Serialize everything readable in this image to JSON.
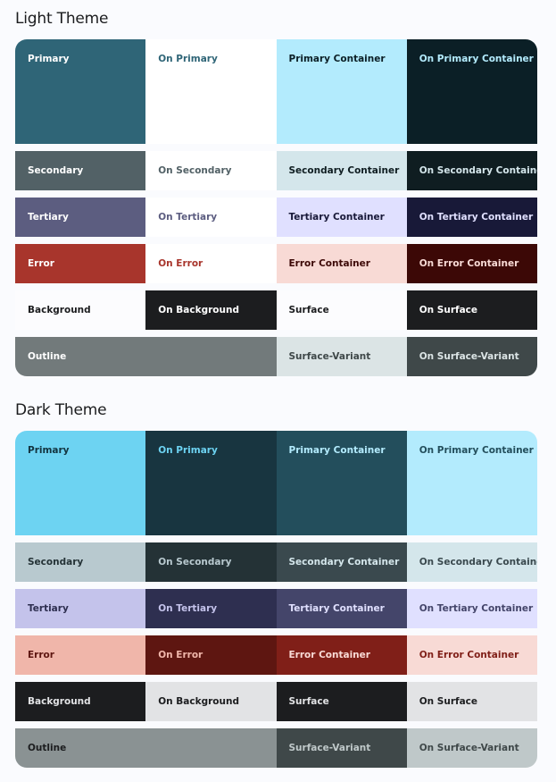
{
  "sections": [
    {
      "title": "Light Theme",
      "rows": [
        {
          "tall": true,
          "cells": [
            {
              "label": "Primary",
              "bg": "#2f6577",
              "fg": "#ffffff"
            },
            {
              "label": "On Primary",
              "bg": "#ffffff",
              "fg": "#2f6577"
            },
            {
              "label": "Primary Container",
              "bg": "#b3ebfd",
              "fg": "#0b1f26"
            },
            {
              "label": "On Primary Container",
              "bg": "#0b1f26",
              "fg": "#b3ebfd"
            }
          ]
        },
        {
          "cells": [
            {
              "label": "Secondary",
              "bg": "#526166",
              "fg": "#ffffff"
            },
            {
              "label": "On Secondary",
              "bg": "#ffffff",
              "fg": "#526166"
            },
            {
              "label": "Secondary Container",
              "bg": "#d4e6eb",
              "fg": "#0f1d21"
            },
            {
              "label": "On Secondary Container",
              "bg": "#0f1d21",
              "fg": "#d4e6eb"
            }
          ]
        },
        {
          "cells": [
            {
              "label": "Tertiary",
              "bg": "#5c5d80",
              "fg": "#ffffff"
            },
            {
              "label": "On Tertiary",
              "bg": "#ffffff",
              "fg": "#5c5d80"
            },
            {
              "label": "Tertiary Container",
              "bg": "#e0e0ff",
              "fg": "#181938"
            },
            {
              "label": "On Tertiary Container",
              "bg": "#181938",
              "fg": "#e0e0ff"
            }
          ]
        },
        {
          "cells": [
            {
              "label": "Error",
              "bg": "#a8352c",
              "fg": "#ffffff"
            },
            {
              "label": "On Error",
              "bg": "#ffffff",
              "fg": "#a8352c"
            },
            {
              "label": "Error Container",
              "bg": "#f8dad5",
              "fg": "#3c0806"
            },
            {
              "label": "On Error Container",
              "bg": "#3c0806",
              "fg": "#f8dad5"
            }
          ]
        },
        {
          "cells": [
            {
              "label": "Background",
              "bg": "#fcfcfe",
              "fg": "#1b1c1e"
            },
            {
              "label": "On Background",
              "bg": "#1c1d1f",
              "fg": "#ffffff"
            },
            {
              "label": "Surface",
              "bg": "#fcfcfe",
              "fg": "#1b1c1e"
            },
            {
              "label": "On Surface",
              "bg": "#1c1d1f",
              "fg": "#ffffff"
            }
          ]
        },
        {
          "cells": [
            {
              "label": "Outline",
              "bg": "#727a7b",
              "fg": "#ffffff",
              "span": 2
            },
            {
              "label": "Surface-Variant",
              "bg": "#dbe4e5",
              "fg": "#3f4849"
            },
            {
              "label": "On Surface-Variant",
              "bg": "#3f4849",
              "fg": "#dbe4e5"
            }
          ]
        }
      ]
    },
    {
      "title": "Dark Theme",
      "rows": [
        {
          "tall": true,
          "cells": [
            {
              "label": "Primary",
              "bg": "#6dd3f2",
              "fg": "#133440"
            },
            {
              "label": "On Primary",
              "bg": "#183540",
              "fg": "#6dd3f2"
            },
            {
              "label": "Primary Container",
              "bg": "#234e5c",
              "fg": "#b3ebfd"
            },
            {
              "label": "On Primary Container",
              "bg": "#b3ebfd",
              "fg": "#234e5c"
            }
          ]
        },
        {
          "cells": [
            {
              "label": "Secondary",
              "bg": "#b8c9cf",
              "fg": "#243236"
            },
            {
              "label": "On Secondary",
              "bg": "#243236",
              "fg": "#b8c9cf"
            },
            {
              "label": "Secondary Container",
              "bg": "#3a494e",
              "fg": "#d4e6eb"
            },
            {
              "label": "On Secondary Container",
              "bg": "#d4e6eb",
              "fg": "#3a494e"
            }
          ]
        },
        {
          "cells": [
            {
              "label": "Tertiary",
              "bg": "#c4c3eb",
              "fg": "#2e2f50"
            },
            {
              "label": "On Tertiary",
              "bg": "#2e2f50",
              "fg": "#c4c3eb"
            },
            {
              "label": "Tertiary Container",
              "bg": "#44456a",
              "fg": "#e0e0ff"
            },
            {
              "label": "On Tertiary Container",
              "bg": "#e0e0ff",
              "fg": "#44456a"
            }
          ]
        },
        {
          "cells": [
            {
              "label": "Error",
              "bg": "#f0b6aa",
              "fg": "#5e1611"
            },
            {
              "label": "On Error",
              "bg": "#5e1611",
              "fg": "#f0b6aa"
            },
            {
              "label": "Error Container",
              "bg": "#801f18",
              "fg": "#f8dad5"
            },
            {
              "label": "On Error Container",
              "bg": "#f8dad5",
              "fg": "#801f18"
            }
          ]
        },
        {
          "cells": [
            {
              "label": "Background",
              "bg": "#1c1d1f",
              "fg": "#e2e3e5"
            },
            {
              "label": "On Background",
              "bg": "#e2e3e5",
              "fg": "#1c1d1f"
            },
            {
              "label": "Surface",
              "bg": "#1c1d1f",
              "fg": "#e2e3e5"
            },
            {
              "label": "On Surface",
              "bg": "#e2e3e5",
              "fg": "#1c1d1f"
            }
          ]
        },
        {
          "cells": [
            {
              "label": "Outline",
              "bg": "#8a9293",
              "fg": "#1c1d1f",
              "span": 2
            },
            {
              "label": "Surface-Variant",
              "bg": "#3f4849",
              "fg": "#bfc8c9"
            },
            {
              "label": "On Surface-Variant",
              "bg": "#bfc8c9",
              "fg": "#3f4849"
            }
          ]
        }
      ]
    }
  ]
}
